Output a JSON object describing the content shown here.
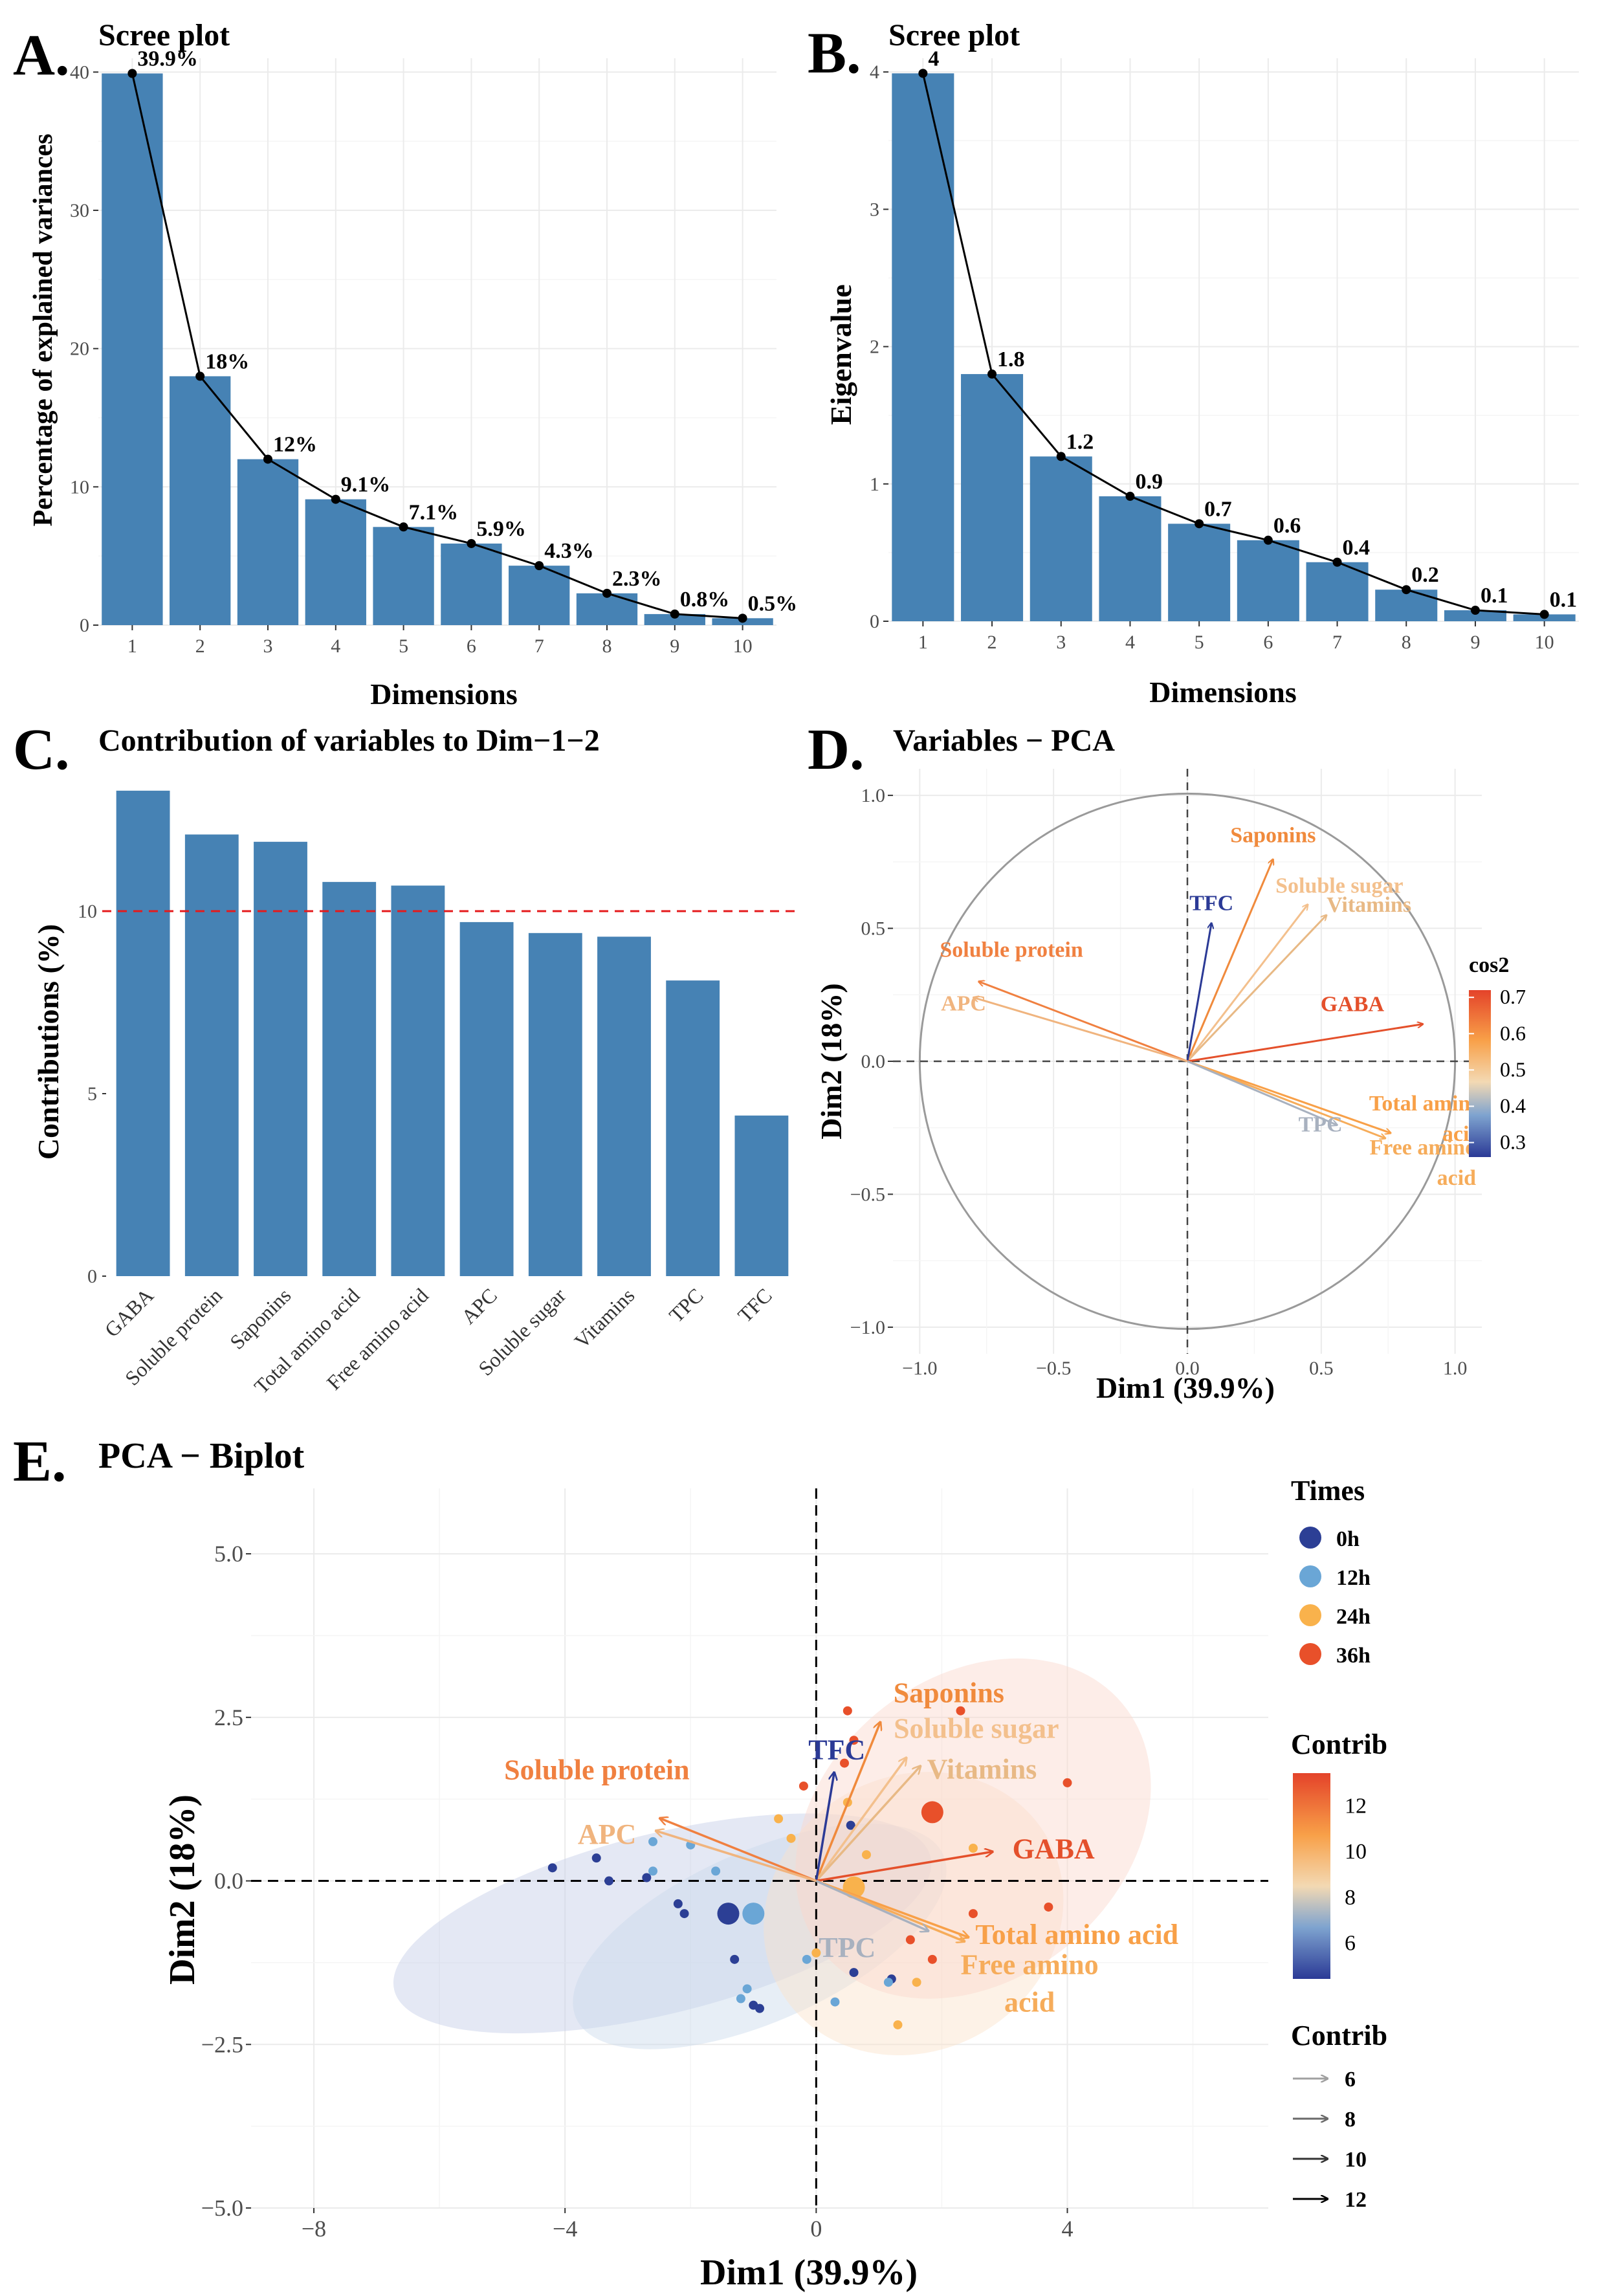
{
  "panel_letters": [
    "A.",
    "B.",
    "C.",
    "D.",
    "E."
  ],
  "colors": {
    "bar": "#4682b4",
    "ref_line": "#e41a1c",
    "ellipse_0h": "#2c3f95",
    "ellipse_12h": "#6aa6d6",
    "ellipse_24h": "#f9b24c",
    "ellipse_36h": "#e8502a"
  },
  "chart_data": [
    {
      "id": "A",
      "type": "bar",
      "title": "Scree plot",
      "xlabel": "Dimensions",
      "ylabel": "Percentage of explained variances",
      "categories": [
        "1",
        "2",
        "3",
        "4",
        "5",
        "6",
        "7",
        "8",
        "9",
        "10"
      ],
      "values": [
        39.9,
        18,
        12,
        9.1,
        7.1,
        5.9,
        4.3,
        2.3,
        0.8,
        0.5
      ],
      "labels": [
        "39.9%",
        "18%",
        "12%",
        "9.1%",
        "7.1%",
        "5.9%",
        "4.3%",
        "2.3%",
        "0.8%",
        "0.5%"
      ],
      "ylim": [
        0,
        41
      ],
      "yticks": [
        0,
        10,
        20,
        30,
        40
      ],
      "overlay_line": true
    },
    {
      "id": "B",
      "type": "bar",
      "title": "Scree plot",
      "xlabel": "Dimensions",
      "ylabel": "Eigenvalue",
      "categories": [
        "1",
        "2",
        "3",
        "4",
        "5",
        "6",
        "7",
        "8",
        "9",
        "10"
      ],
      "values": [
        3.99,
        1.8,
        1.2,
        0.91,
        0.71,
        0.59,
        0.43,
        0.23,
        0.08,
        0.05
      ],
      "labels": [
        "4",
        "1.8",
        "1.2",
        "0.9",
        "0.7",
        "0.6",
        "0.4",
        "0.2",
        "0.1",
        "0.1"
      ],
      "ylim": [
        0,
        4.1
      ],
      "yticks": [
        0,
        1,
        2,
        3,
        4
      ],
      "overlay_line": true
    },
    {
      "id": "C",
      "type": "bar",
      "title": "Contribution of variables to Dim−1−2",
      "xlabel": "",
      "ylabel": "Contributions (%)",
      "categories": [
        "GABA",
        "Soluble protein",
        "Saponins",
        "Total amino acid",
        "Free amino acid",
        "APC",
        "Soluble sugar",
        "Vitamins",
        "TPC",
        "TFC"
      ],
      "values": [
        13.3,
        12.1,
        11.9,
        10.8,
        10.7,
        9.7,
        9.4,
        9.3,
        8.1,
        4.4
      ],
      "reference_line": 10,
      "ylim": [
        0,
        13.9
      ],
      "yticks": [
        0,
        5,
        10
      ]
    },
    {
      "id": "D",
      "type": "scatter",
      "subtype": "pca-variable-circle",
      "title": "Variables − PCA",
      "xlabel": "Dim1 (39.9%)",
      "ylabel": "Dim2 (18%)",
      "xlim": [
        -1.0,
        1.0
      ],
      "ylim": [
        -1.0,
        1.0
      ],
      "xticks": [
        "−1.0",
        "−0.5",
        "0.0",
        "0.5",
        "1.0"
      ],
      "yticks": [
        "−1.0",
        "−0.5",
        "0.0",
        "0.5",
        "1.0"
      ],
      "legend_title": "cos2",
      "legend_ticks": [
        "0.7",
        "0.6",
        "0.5",
        "0.4",
        "0.3"
      ],
      "variables": [
        {
          "name": "Saponins",
          "x": 0.32,
          "y": 0.76,
          "color": "#f08a3c"
        },
        {
          "name": "Soluble sugar",
          "x": 0.45,
          "y": 0.59,
          "color": "#f3c08d"
        },
        {
          "name": "Vitamins",
          "x": 0.52,
          "y": 0.55,
          "color": "#e8b985"
        },
        {
          "name": "TFC",
          "x": 0.09,
          "y": 0.52,
          "color": "#2b3a96"
        },
        {
          "name": "Soluble protein",
          "x": -0.78,
          "y": 0.3,
          "color": "#f08040"
        },
        {
          "name": "APC",
          "x": -0.8,
          "y": 0.24,
          "color": "#f0b47e"
        },
        {
          "name": "GABA",
          "x": 0.88,
          "y": 0.14,
          "color": "#e4502b"
        },
        {
          "name": "Total amino acid",
          "x": 0.76,
          "y": -0.27,
          "color": "#f8a048"
        },
        {
          "name": "Free amino acid",
          "x": 0.74,
          "y": -0.29,
          "color": "#f6ac5a"
        },
        {
          "name": "TPC",
          "x": 0.56,
          "y": -0.24,
          "color": "#a8b1bf"
        }
      ],
      "variable_labels": [
        {
          "name": "Saponins",
          "text": [
            "Saponins"
          ]
        },
        {
          "name": "Soluble sugar",
          "text": [
            "Soluble sugar"
          ]
        },
        {
          "name": "Vitamins",
          "text": [
            "Vitamins"
          ]
        },
        {
          "name": "TFC",
          "text": [
            "TFC"
          ]
        },
        {
          "name": "Soluble protein",
          "text": [
            "Soluble protein"
          ]
        },
        {
          "name": "APC",
          "text": [
            "APC"
          ]
        },
        {
          "name": "GABA",
          "text": [
            "GABA"
          ]
        },
        {
          "name": "Total amino acid",
          "text": [
            "Total amino",
            "acid"
          ]
        },
        {
          "name": "Free amino acid",
          "text": [
            "Free amino",
            "acid"
          ]
        },
        {
          "name": "TPC",
          "text": [
            "TPC"
          ]
        }
      ]
    },
    {
      "id": "E",
      "type": "scatter",
      "subtype": "pca-biplot",
      "title": "PCA − Biplot",
      "xlabel": "Dim1 (39.9%)",
      "ylabel": "Dim2 (18%)",
      "xlim": [
        -9.0,
        7.2
      ],
      "ylim": [
        -5.0,
        6.0
      ],
      "xticks": [
        "−8",
        "−4",
        "0",
        "4"
      ],
      "yticks": [
        "5.0",
        "2.5",
        "0.0",
        "−2.5",
        "−5.0"
      ],
      "groups": [
        {
          "name": "0h",
          "color": "#2c3f95",
          "centroid": [
            -1.4,
            -0.5
          ],
          "points": [
            [
              -4.2,
              0.2
            ],
            [
              -3.5,
              0.35
            ],
            [
              -3.3,
              0.0
            ],
            [
              -2.7,
              0.05
            ],
            [
              -2.1,
              -0.5
            ],
            [
              -2.2,
              -0.35
            ],
            [
              -1.3,
              -1.2
            ],
            [
              -1.0,
              -1.9
            ],
            [
              -0.9,
              -1.95
            ],
            [
              0.6,
              -1.4
            ],
            [
              1.2,
              -1.5
            ],
            [
              0.55,
              0.85
            ]
          ],
          "ellipse": {
            "cx": -2.45,
            "cy": -0.65,
            "rx": 8.8,
            "ry": 2.75,
            "angle": -14,
            "fill": "#c4cbe6",
            "opacity": 0.45
          }
        },
        {
          "name": "12h",
          "color": "#6aa6d6",
          "centroid": [
            -1.0,
            -0.5
          ],
          "points": [
            [
              -2.6,
              0.6
            ],
            [
              -2.0,
              0.55
            ],
            [
              -1.6,
              0.15
            ],
            [
              -2.6,
              0.15
            ],
            [
              -1.1,
              -1.65
            ],
            [
              -1.2,
              -1.8
            ],
            [
              0.3,
              -1.85
            ],
            [
              1.15,
              -1.55
            ],
            [
              -0.15,
              -1.2
            ]
          ],
          "ellipse": {
            "cx": -0.9,
            "cy": -0.85,
            "rx": 6.4,
            "ry": 2.6,
            "angle": -24,
            "fill": "#c9d9ea",
            "opacity": 0.45
          }
        },
        {
          "name": "24h",
          "color": "#f9b24c",
          "centroid": [
            0.6,
            -0.1
          ],
          "points": [
            [
              -0.4,
              0.65
            ],
            [
              -0.6,
              0.95
            ],
            [
              0.8,
              0.4
            ],
            [
              1.6,
              -1.55
            ],
            [
              2.5,
              0.5
            ],
            [
              1.3,
              -2.2
            ],
            [
              0.5,
              1.2
            ],
            [
              0.0,
              -1.1
            ]
          ],
          "ellipse": {
            "cx": 1.55,
            "cy": -0.5,
            "rx": 4.9,
            "ry": 4.2,
            "angle": -30,
            "fill": "#fbe3c9",
            "opacity": 0.45
          }
        },
        {
          "name": "36h",
          "color": "#e8502a",
          "centroid": [
            1.85,
            1.05
          ],
          "points": [
            [
              0.5,
              2.6
            ],
            [
              2.3,
              2.6
            ],
            [
              0.6,
              2.15
            ],
            [
              0.45,
              1.8
            ],
            [
              -0.2,
              1.45
            ],
            [
              4.0,
              1.5
            ],
            [
              3.7,
              -0.4
            ],
            [
              2.5,
              -0.5
            ],
            [
              1.85,
              -1.2
            ],
            [
              1.5,
              -0.9
            ]
          ],
          "ellipse": {
            "cx": 2.5,
            "cy": 0.8,
            "rx": 6.2,
            "ry": 4.6,
            "angle": -40,
            "fill": "#fbd8cb",
            "opacity": 0.45
          }
        }
      ],
      "legend_times_title": "Times",
      "legend_contrib_color_title": "Contrib",
      "legend_contrib_color_ticks": [
        "12",
        "10",
        "8",
        "6"
      ],
      "legend_contrib_arrow_title": "Contrib",
      "legend_contrib_arrow_values": [
        "6",
        "8",
        "10",
        "12"
      ],
      "arrow_scale": 3.2,
      "variable_label_colors": {
        "Saponins": "#f08a3c",
        "Soluble sugar": "#f3c08d",
        "Vitamins": "#e8b985",
        "TFC": "#2b3a96",
        "Soluble protein": "#f08040",
        "APC": "#f0b47e",
        "GABA": "#e4502b",
        "Total amino acid": "#f8a048",
        "Free amino acid": "#f6ac5a",
        "TPC": "#a8b1bf"
      }
    }
  ]
}
